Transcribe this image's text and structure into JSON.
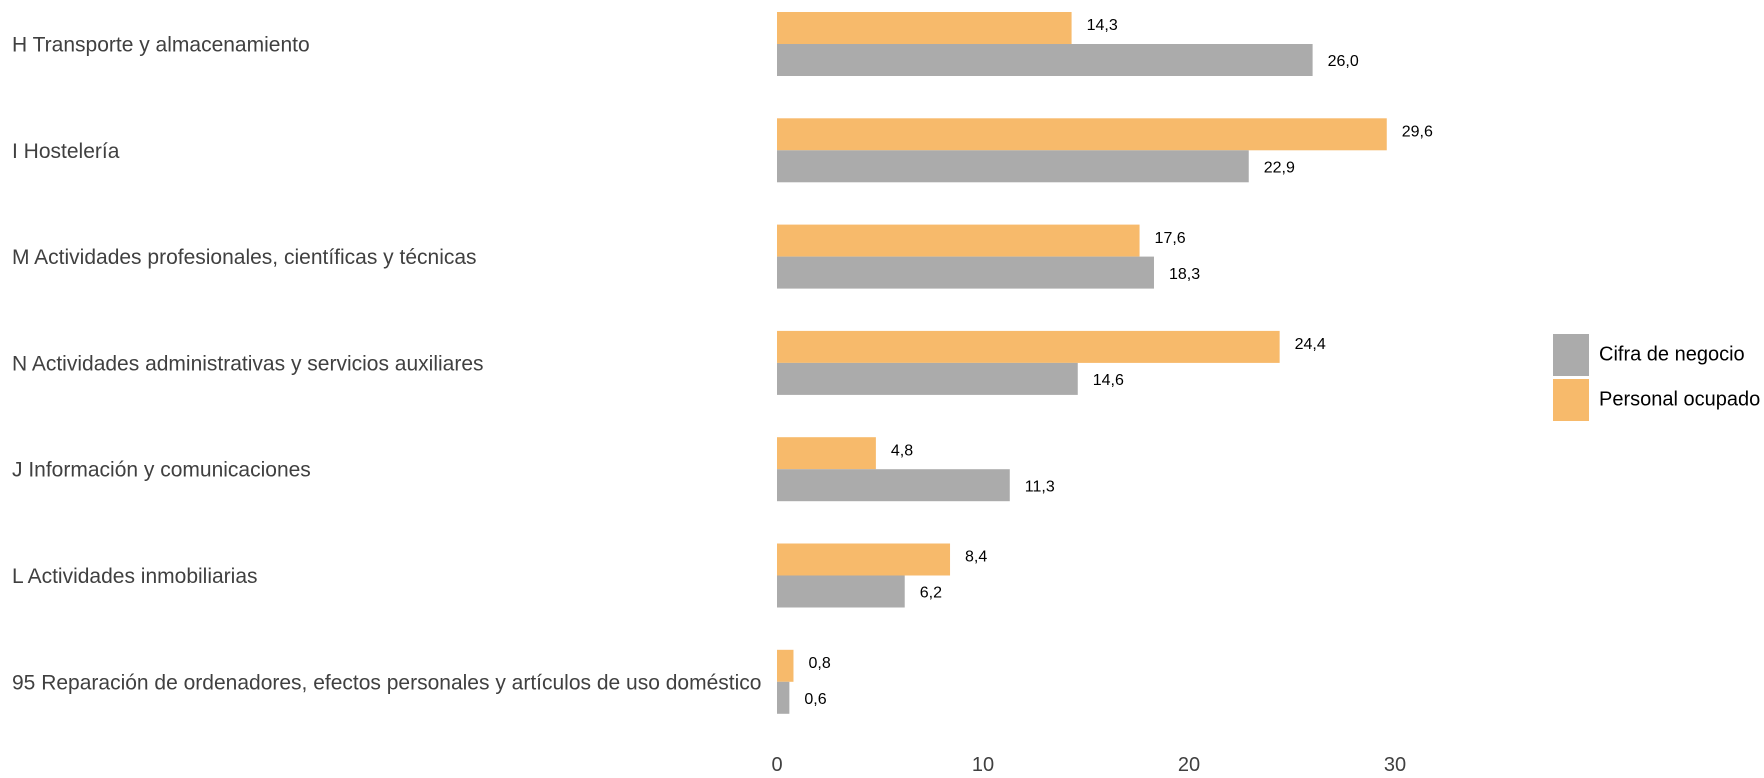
{
  "chart_data": {
    "type": "bar",
    "orientation": "horizontal",
    "title": "",
    "xlabel": "",
    "ylabel": "",
    "categories": [
      "H Transporte y almacenamiento",
      "I Hostelería",
      "M Actividades profesionales, científicas y técnicas",
      "N Actividades administrativas y servicios auxiliares",
      "J Información y comunicaciones",
      "L Actividades inmobiliarias",
      "95 Reparación de ordenadores, efectos personales y artículos de uso doméstico"
    ],
    "series": [
      {
        "name": "Personal ocupado",
        "color": "#F7BA6B",
        "values": [
          14.3,
          29.6,
          17.6,
          24.4,
          4.8,
          8.4,
          0.8
        ],
        "labels": [
          "14,3",
          "29,6",
          "17,6",
          "24,4",
          "4,8",
          "8,4",
          "0,8"
        ]
      },
      {
        "name": "Cifra de negocio",
        "color": "#ABABAB",
        "values": [
          26.0,
          22.9,
          18.3,
          14.6,
          11.3,
          6.2,
          0.6
        ],
        "labels": [
          "26,0",
          "22,9",
          "18,3",
          "14,6",
          "11,3",
          "6,2",
          "0,6"
        ]
      }
    ],
    "xlim": [
      0,
      30
    ],
    "xticks": [
      0,
      10,
      20,
      30
    ],
    "xtick_labels": [
      "0",
      "10",
      "20",
      "30"
    ],
    "grid": false,
    "legend": {
      "position": "right",
      "order": [
        "Cifra de negocio",
        "Personal ocupado"
      ]
    }
  }
}
